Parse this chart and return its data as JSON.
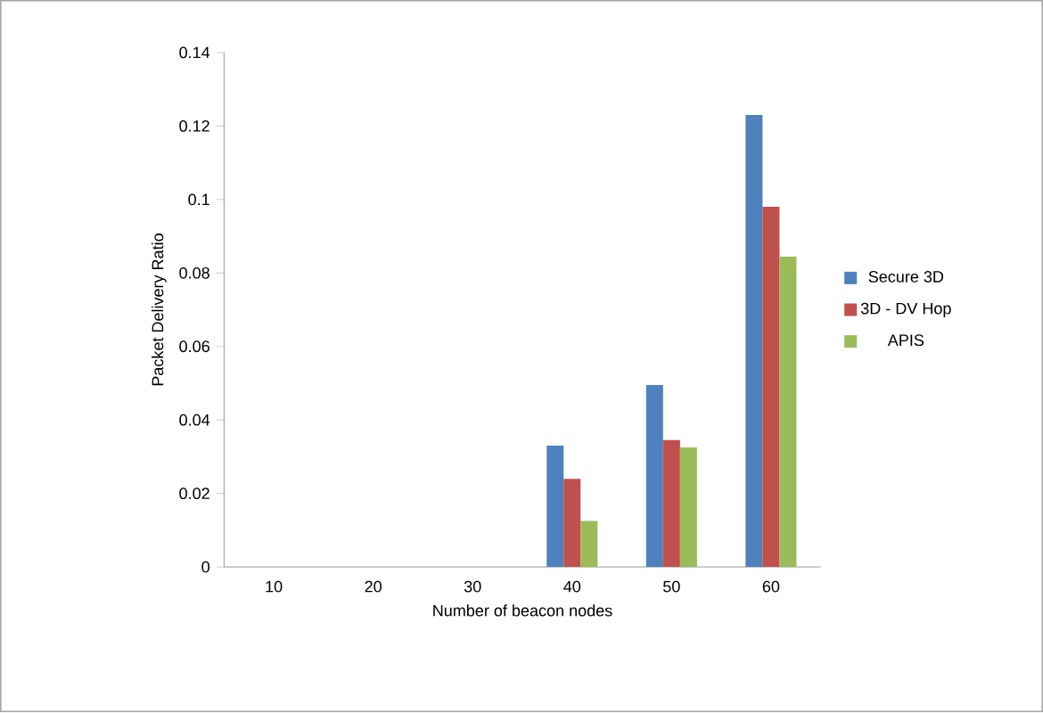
{
  "chart_data": {
    "type": "bar",
    "xlabel": "Number of beacon nodes",
    "ylabel": "Packet Delivery Ratio",
    "categories": [
      "10",
      "20",
      "30",
      "40",
      "50",
      "60"
    ],
    "series": [
      {
        "name": "Secure 3D",
        "color": "#4f81bd",
        "values": [
          0,
          0,
          0,
          0.033,
          0.0495,
          0.123
        ]
      },
      {
        "name": "3D - DV Hop",
        "color": "#c0504d",
        "values": [
          0,
          0,
          0,
          0.024,
          0.0345,
          0.098
        ]
      },
      {
        "name": "APIS",
        "color": "#9bbb59",
        "values": [
          0,
          0,
          0,
          0.0125,
          0.0325,
          0.0845
        ]
      }
    ],
    "ylim": [
      0,
      0.14
    ],
    "yticks": [
      0,
      0.02,
      0.04,
      0.06,
      0.08,
      0.1,
      0.12,
      0.14
    ],
    "grid": false,
    "legend": "right"
  }
}
